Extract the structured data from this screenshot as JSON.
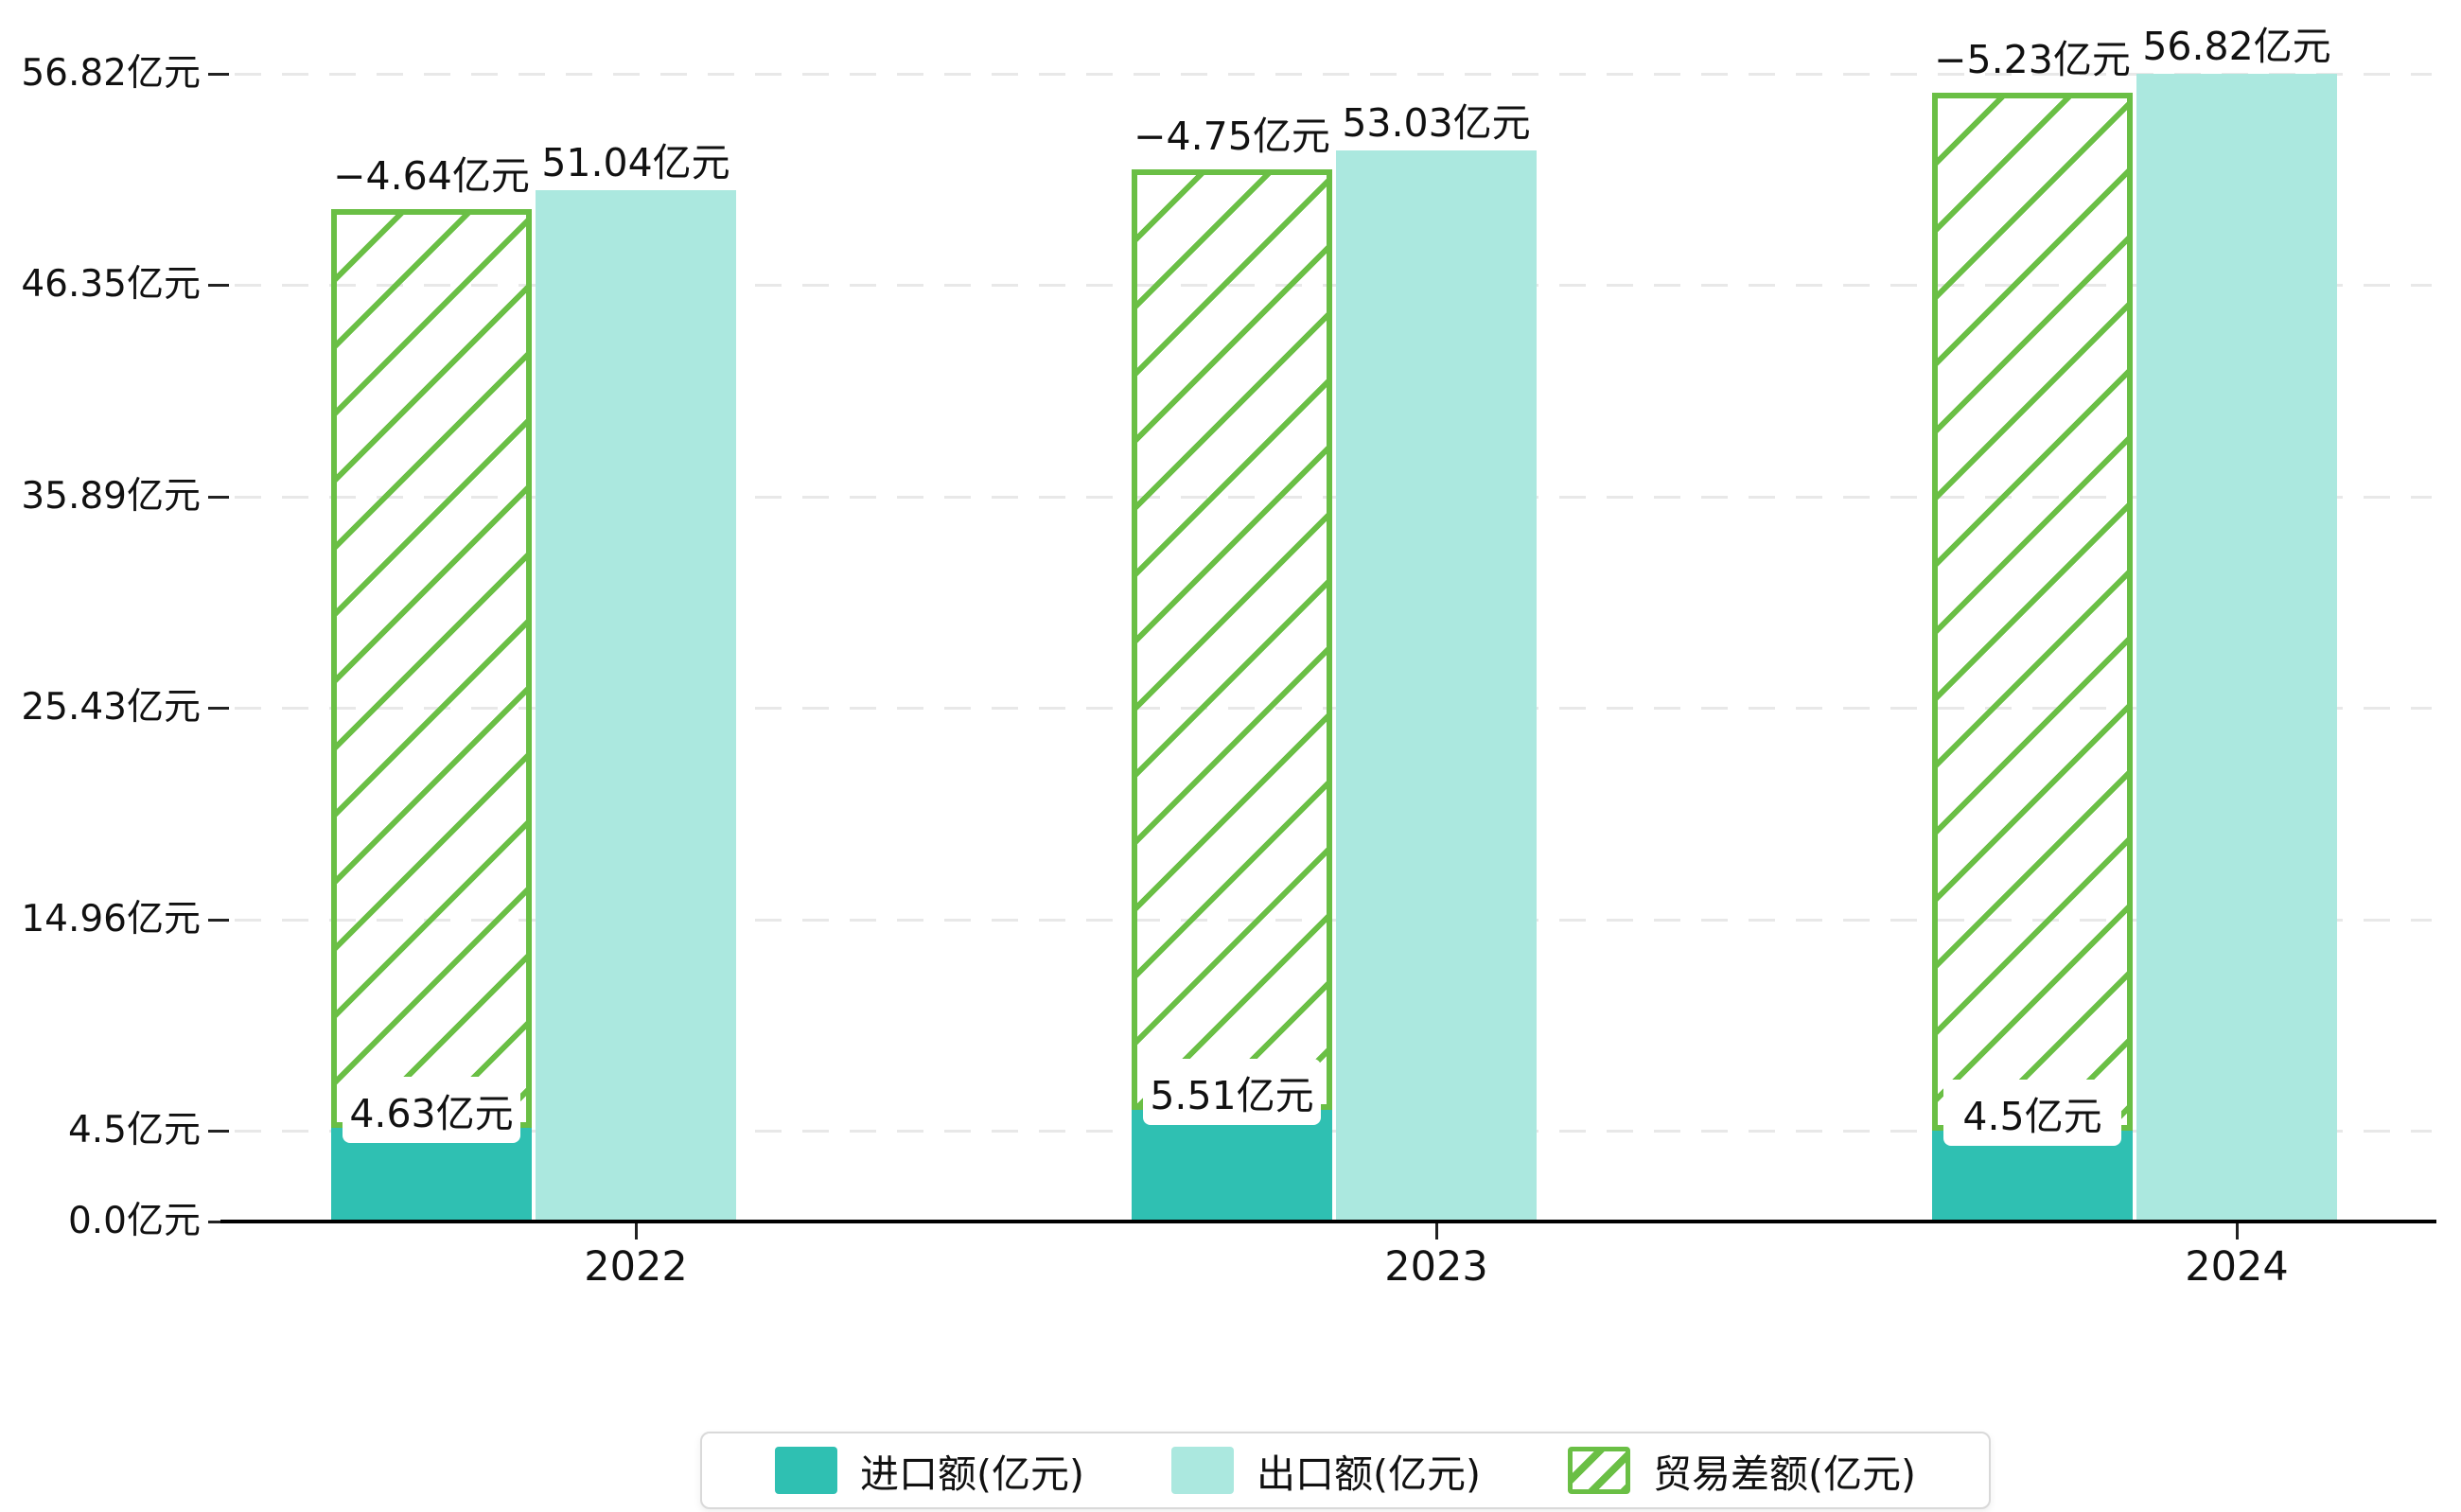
{
  "chart_data": {
    "type": "bar",
    "title": "",
    "categories": [
      "2022",
      "2023",
      "2024"
    ],
    "series": [
      {
        "name": "进口额(亿元)",
        "role": "import",
        "color": "#2fc0b2",
        "values": [
          4.63,
          5.51,
          4.5
        ],
        "labels": [
          "4.63亿元",
          "5.51亿元",
          "4.5亿元"
        ]
      },
      {
        "name": "出口额(亿元)",
        "role": "export",
        "color": "#abe8df",
        "values": [
          51.04,
          53.03,
          56.82
        ],
        "labels": [
          "51.04亿元",
          "53.03亿元",
          "56.82亿元"
        ]
      },
      {
        "name": "贸易差额(亿元)",
        "role": "trade-balance",
        "color": "#6abf45",
        "pattern": "diagonal-hatch",
        "values": [
          -4.64,
          -4.75,
          -5.23
        ],
        "labels": [
          "−4.64亿元",
          "−4.75亿元",
          "−5.23亿元"
        ],
        "drawn_span": "from import bar top to export bar top (stacked above import)"
      }
    ],
    "yticks": [
      {
        "value": 0,
        "label": "0.0亿元"
      },
      {
        "value": 4.5,
        "label": "4.5亿元"
      },
      {
        "value": 14.96,
        "label": "14.96亿元"
      },
      {
        "value": 25.43,
        "label": "25.43亿元"
      },
      {
        "value": 35.89,
        "label": "35.89亿元"
      },
      {
        "value": 46.35,
        "label": "46.35亿元"
      },
      {
        "value": 56.82,
        "label": "56.82亿元"
      }
    ],
    "ylim": [
      0,
      56.82
    ],
    "grid": true,
    "grid_style": "dashed-light-gray",
    "legend_position": "bottom-center",
    "colors": {
      "import": "#2fc0b2",
      "export": "#abe8df",
      "trade_balance": "#6abf45",
      "axis": "#000000",
      "gridline": "#e8e8e8",
      "text": "#111111"
    }
  }
}
